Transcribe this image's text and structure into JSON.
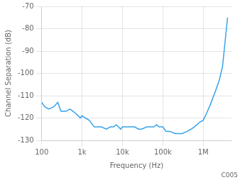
{
  "chart_data": {
    "type": "line",
    "xlabel": "Frequency (Hz)",
    "ylabel": "Channel Separation (dB)",
    "log": "x",
    "grid": true,
    "xlim": [
      100,
      5000000
    ],
    "xticks": [
      100,
      {
        "value": 1000,
        "label": "1k"
      },
      {
        "value": 10000,
        "label": "10k"
      },
      {
        "value": 100000,
        "label": "100k"
      },
      {
        "value": 1000000,
        "label": "1M"
      }
    ],
    "ylim": [
      -130,
      -70
    ],
    "yticks": [
      -130,
      -120,
      -110,
      -100,
      -90,
      -80,
      -70
    ],
    "annotations": [
      "C005"
    ],
    "x": [
      100,
      120,
      150,
      200,
      250,
      300,
      400,
      500,
      600,
      700,
      800,
      900,
      1000,
      1200,
      1500,
      2000,
      2500,
      3000,
      4000,
      5000,
      6000,
      7000,
      8000,
      9000,
      10000,
      12000,
      15000,
      20000,
      25000,
      30000,
      40000,
      50000,
      60000,
      70000,
      80000,
      100000,
      120000,
      150000,
      200000,
      250000,
      300000,
      400000,
      500000,
      600000,
      700000,
      800000,
      1000000,
      1200000,
      1500000,
      2000000,
      2500000,
      3000000,
      4000000
    ],
    "values": [
      -113,
      -115,
      -116,
      -115,
      -113,
      -117,
      -117,
      -116,
      -117,
      -118,
      -119,
      -120,
      -119,
      -120,
      -121,
      -124,
      -124,
      -124,
      -125,
      -124,
      -124,
      -123,
      -124,
      -125,
      -124,
      -124,
      -124,
      -124,
      -125,
      -125,
      -124,
      -124,
      -124,
      -123,
      -124,
      -124,
      -126,
      -126,
      -127,
      -127,
      -127,
      -126,
      -125,
      -124,
      -123,
      -122,
      -121,
      -118,
      -114,
      -108,
      -103,
      -97,
      -75
    ]
  }
}
